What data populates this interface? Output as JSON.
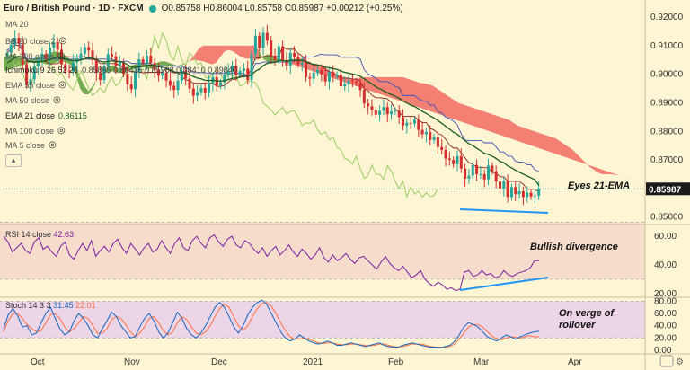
{
  "header": {
    "symbol": "Euro / British Pound · 1D · FXCM",
    "ohlc": "O0.85758 H0.86004 L0.85758 C0.85987 +0.00212 (+0.25%)"
  },
  "indicators": [
    {
      "label": "MA 20",
      "value": ""
    },
    {
      "label": "BB 20 close 2",
      "value": ""
    },
    {
      "label": "MA 200 close",
      "value": ""
    },
    {
      "label": "Ichimoku 9 26 52 26",
      "value": "0.85865  0.86415  0.85988  0.88410  0.89840"
    },
    {
      "label": "EMA 55 close",
      "value": ""
    },
    {
      "label": "MA 50 close",
      "value": ""
    },
    {
      "label": "EMA 21 close",
      "value": "0.86115"
    },
    {
      "label": "MA 100 close",
      "value": ""
    },
    {
      "label": "MA 5 close",
      "value": ""
    }
  ],
  "rsi": {
    "label": "RSI 14 close",
    "value": "42.63"
  },
  "stoch": {
    "label": "Stoch 14 3 3",
    "k": "31.45",
    "d": "22.01"
  },
  "annotations": {
    "eyes": "Eyes 21-EMA",
    "bullish": "Bullish divergence",
    "verge1": "On verge of",
    "verge2": "rollover"
  },
  "colors": {
    "background": "#fdf5d3",
    "up": "#26a69a",
    "down": "#d32f2f",
    "cloud_bear": "#f26b63",
    "cloud_bull": "#5f9e3a",
    "ema21": "#1b5e20",
    "kijun": "#8e2020",
    "tenkan": "#3f51b5",
    "chikou": "#9ccc65",
    "rsi": "#7b1fa2",
    "stoch_k": "#1565c0",
    "stoch_d": "#ff7043",
    "divergence": "#2196f3"
  },
  "chart_data": [
    {
      "type": "candlestick",
      "title": "Euro / British Pound",
      "x_labels": [
        "Oct",
        "Nov",
        "Dec",
        "2021",
        "Feb",
        "Mar",
        "Apr"
      ],
      "y_ticks": [
        0.85,
        0.86,
        0.87,
        0.88,
        0.89,
        0.9,
        0.91,
        0.92
      ],
      "ylim": [
        0.848,
        0.9235
      ],
      "last_price": "0.85987",
      "close": [
        0.9075,
        0.9103,
        0.9128,
        0.9108,
        0.9035,
        0.8962,
        0.8982,
        0.9028,
        0.9051,
        0.9072,
        0.9055,
        0.9093,
        0.9112,
        0.9086,
        0.9035,
        0.9013,
        0.901,
        0.9042,
        0.9055,
        0.9072,
        0.9095,
        0.9083,
        0.905,
        0.9005,
        0.898,
        0.9028,
        0.907,
        0.9062,
        0.903,
        0.9042,
        0.9002,
        0.8965,
        0.8948,
        0.9008,
        0.9052,
        0.904,
        0.9065,
        0.904,
        0.9015,
        0.8995,
        0.9005,
        0.8978,
        0.896,
        0.8945,
        0.8978,
        0.9012,
        0.8985,
        0.895,
        0.8925,
        0.8938,
        0.8952,
        0.8935,
        0.8968,
        0.899,
        0.896,
        0.8972,
        0.8998,
        0.901,
        0.903,
        0.8998,
        0.9012,
        0.902,
        0.898,
        0.907,
        0.9135,
        0.9092,
        0.9145,
        0.9118,
        0.9065,
        0.905,
        0.9098,
        0.905,
        0.903,
        0.9075,
        0.906,
        0.9035,
        0.904,
        0.899,
        0.8985,
        0.9005,
        0.9015,
        0.9,
        0.8975,
        0.9008,
        0.8993,
        0.8998,
        0.8958,
        0.8965,
        0.8978,
        0.8975,
        0.897,
        0.8945,
        0.8898,
        0.8888,
        0.8875,
        0.8858,
        0.8872,
        0.8885,
        0.886,
        0.887,
        0.8872,
        0.885,
        0.882,
        0.883,
        0.8828,
        0.884,
        0.8805,
        0.879,
        0.8798,
        0.877,
        0.878,
        0.8745,
        0.8735,
        0.8705,
        0.87,
        0.8685,
        0.8713,
        0.867,
        0.8635,
        0.8645,
        0.8682,
        0.865,
        0.865,
        0.8632,
        0.868,
        0.866,
        0.8625,
        0.86,
        0.8625,
        0.857,
        0.8605,
        0.858,
        0.859,
        0.857,
        0.8585,
        0.8572,
        0.8575,
        0.8598
      ],
      "ema21": [
        0.904,
        0.9048,
        0.9058,
        0.9063,
        0.906,
        0.9051,
        0.9044,
        0.9042,
        0.9043,
        0.9046,
        0.9047,
        0.9051,
        0.9057,
        0.906,
        0.9057,
        0.9053,
        0.9049,
        0.9048,
        0.9048,
        0.905,
        0.9054,
        0.9057,
        0.9056,
        0.9052,
        0.9045,
        0.9043,
        0.9045,
        0.9047,
        0.9045,
        0.9045,
        0.9041,
        0.9034,
        0.9026,
        0.9024,
        0.9027,
        0.9028,
        0.9031,
        0.9032,
        0.903,
        0.9027,
        0.9025,
        0.9021,
        0.9015,
        0.9009,
        0.9006,
        0.9006,
        0.9004,
        0.8999,
        0.8992,
        0.8987,
        0.8984,
        0.8979,
        0.8978,
        0.8979,
        0.8977,
        0.8976,
        0.8978,
        0.8981,
        0.8986,
        0.8987,
        0.899,
        0.8993,
        0.8992,
        0.8998,
        0.9011,
        0.9018,
        0.903,
        0.9038,
        0.9041,
        0.9042,
        0.9048,
        0.9048,
        0.9046,
        0.9049,
        0.905,
        0.9049,
        0.9048,
        0.9043,
        0.9038,
        0.9035,
        0.9033,
        0.903,
        0.9025,
        0.9023,
        0.902,
        0.9017,
        0.9011,
        0.9007,
        0.9004,
        0.9001,
        0.8998,
        0.8993,
        0.8984,
        0.8975,
        0.8966,
        0.8956,
        0.8949,
        0.8943,
        0.8935,
        0.8929,
        0.8923,
        0.8916,
        0.8907,
        0.8899,
        0.8892,
        0.8887,
        0.8879,
        0.887,
        0.8863,
        0.8854,
        0.8847,
        0.8838,
        0.8828,
        0.8818,
        0.8808,
        0.8797,
        0.879,
        0.8779,
        0.8767,
        0.8757,
        0.875,
        0.8741,
        0.8732,
        0.8723,
        0.8719,
        0.8713,
        0.8705,
        0.8695,
        0.869,
        0.8679,
        0.8672,
        0.8664,
        0.8657,
        0.865,
        0.8644,
        0.8637,
        0.8631,
        0.8611
      ],
      "cloud_a": [
        0.906,
        0.9065,
        0.907,
        0.9065,
        0.9055,
        0.9048,
        0.905,
        0.9055,
        0.906,
        0.9065,
        0.907,
        0.9075,
        0.908,
        0.9078,
        0.907,
        0.906,
        0.905,
        0.903,
        0.899,
        0.896,
        0.894,
        0.896,
        0.898,
        0.9,
        0.902,
        0.903,
        0.903,
        0.902,
        0.902,
        0.9025,
        0.903,
        0.9035,
        0.904,
        0.904,
        0.9035,
        0.9035,
        0.904,
        0.9045,
        0.9045,
        0.904,
        0.9035,
        0.903,
        0.9035,
        0.904,
        0.9048,
        0.905,
        0.9048,
        0.9045,
        0.904,
        0.9035,
        0.904,
        0.906,
        0.908,
        0.9085,
        0.908,
        0.907,
        0.906,
        0.9055,
        0.9055,
        0.905,
        0.9052,
        0.906,
        0.907,
        0.9068,
        0.906,
        0.905,
        0.9045,
        0.9048,
        0.905,
        0.9055,
        0.9055,
        0.905,
        0.9042,
        0.9035,
        0.903,
        0.9025,
        0.902,
        0.901,
        0.9,
        0.8995,
        0.899,
        0.8985,
        0.8985,
        0.8985,
        0.8985,
        0.899,
        0.899,
        0.899,
        0.899,
        0.899,
        0.899,
        0.899,
        0.899,
        0.899,
        0.899,
        0.8985,
        0.898,
        0.8975,
        0.897,
        0.8968,
        0.8965,
        0.896,
        0.895,
        0.894,
        0.893,
        0.892,
        0.891,
        0.89,
        0.8895,
        0.889,
        0.8885,
        0.888,
        0.8875,
        0.887,
        0.8865,
        0.886,
        0.8855,
        0.885,
        0.8845,
        0.884,
        0.883,
        0.882,
        0.8815,
        0.881,
        0.8805,
        0.88,
        0.8795,
        0.879,
        0.8785,
        0.878,
        0.8775,
        0.8765,
        0.8755,
        0.8745,
        0.8735,
        0.872,
        0.8705,
        0.869,
        0.8675,
        0.8665,
        0.8655,
        0.865,
        0.865,
        0.865,
        0.8648,
        0.8645,
        0.864,
        0.8635,
        0.863,
        0.8625,
        0.862,
        0.8615
      ],
      "cloud_b": [
        0.901,
        0.9015,
        0.902,
        0.9025,
        0.903,
        0.9035,
        0.904,
        0.9045,
        0.9045,
        0.904,
        0.9035,
        0.9035,
        0.904,
        0.9045,
        0.9045,
        0.904,
        0.903,
        0.9,
        0.895,
        0.893,
        0.893,
        0.895,
        0.898,
        0.8995,
        0.9005,
        0.901,
        0.901,
        0.9005,
        0.9005,
        0.901,
        0.9015,
        0.902,
        0.9025,
        0.9025,
        0.902,
        0.902,
        0.9025,
        0.903,
        0.903,
        0.903,
        0.903,
        0.903,
        0.903,
        0.904,
        0.905,
        0.907,
        0.909,
        0.91,
        0.91,
        0.91,
        0.91,
        0.91,
        0.91,
        0.91,
        0.91,
        0.91,
        0.91,
        0.91,
        0.91,
        0.91,
        0.9085,
        0.9055,
        0.9045,
        0.904,
        0.9045,
        0.905,
        0.906,
        0.9075,
        0.9085,
        0.909,
        0.909,
        0.909,
        0.909,
        0.909,
        0.909,
        0.909,
        0.909,
        0.909,
        0.909,
        0.909,
        0.909,
        0.909,
        0.909,
        0.909,
        0.909,
        0.909,
        0.909,
        0.909,
        0.909,
        0.909,
        0.909,
        0.909,
        0.909,
        0.909,
        0.909,
        0.909,
        0.909,
        0.909,
        0.909,
        0.909,
        0.909,
        0.909,
        0.909,
        0.909,
        0.909,
        0.909,
        0.909,
        0.909,
        0.909,
        0.909,
        0.909,
        0.909,
        0.909,
        0.909,
        0.909,
        0.909,
        0.909,
        0.909,
        0.909,
        0.909,
        0.9085,
        0.9075,
        0.9065,
        0.906,
        0.9055,
        0.9055,
        0.905,
        0.905,
        0.905,
        0.9045,
        0.904,
        0.9035,
        0.903,
        0.902,
        0.901,
        0.9,
        0.899,
        0.898,
        0.897,
        0.896,
        0.895,
        0.894,
        0.893,
        0.892,
        0.891,
        0.89,
        0.889,
        0.8885,
        0.888,
        0.8875,
        0.887
      ]
    },
    {
      "type": "line",
      "title": "RSI 14 close",
      "y_ticks": [
        20.0,
        40.0,
        60.0
      ],
      "ylim": [
        18,
        67
      ],
      "values": [
        60,
        56,
        49,
        52,
        55,
        50,
        48,
        56,
        59,
        51,
        53,
        49,
        46,
        53,
        56,
        47,
        44,
        50,
        55,
        50,
        57,
        46,
        50,
        53,
        49,
        55,
        58,
        52,
        48,
        55,
        51,
        47,
        52,
        55,
        49,
        51,
        57,
        52,
        48,
        55,
        59,
        52,
        50,
        57,
        60,
        55,
        52,
        59,
        61,
        56,
        53,
        58,
        60,
        54,
        52,
        57,
        55,
        51,
        48,
        52,
        46,
        50,
        53,
        47,
        50,
        54,
        49,
        46,
        51,
        48,
        44,
        47,
        52,
        45,
        42,
        47,
        43,
        45,
        48,
        44,
        41,
        45,
        46,
        43,
        40,
        37,
        42,
        46,
        41,
        38,
        36,
        39,
        35,
        31,
        33,
        36,
        30,
        27,
        25,
        28,
        26,
        23,
        24,
        22,
        23,
        35,
        36,
        32,
        33,
        36,
        33,
        34,
        31,
        32,
        36,
        33,
        32,
        34,
        35,
        36,
        38,
        43,
        43
      ]
    },
    {
      "type": "line",
      "title": "Stoch 14 3 3",
      "y_ticks": [
        0.0,
        20.0,
        40.0,
        60.0,
        80.0
      ],
      "ylim": [
        -3,
        85
      ],
      "k": [
        35,
        58,
        68,
        56,
        38,
        40,
        25,
        28,
        45,
        60,
        70,
        52,
        35,
        25,
        30,
        48,
        60,
        52,
        40,
        25,
        20,
        35,
        48,
        62,
        55,
        40,
        30,
        20,
        22,
        38,
        52,
        60,
        48,
        30,
        20,
        28,
        45,
        62,
        52,
        35,
        25,
        20,
        28,
        40,
        55,
        70,
        78,
        70,
        55,
        38,
        28,
        40,
        58,
        70,
        78,
        82,
        75,
        60,
        45,
        30,
        20,
        15,
        18,
        25,
        20,
        15,
        12,
        10,
        12,
        15,
        12,
        8,
        8,
        10,
        12,
        10,
        8,
        6,
        8,
        10,
        12,
        8,
        6,
        5,
        5,
        8,
        10,
        12,
        10,
        8,
        6,
        5,
        5,
        4,
        6,
        8,
        14,
        25,
        38,
        45,
        42,
        38,
        30,
        22,
        18,
        15,
        20,
        25,
        22,
        18,
        22,
        25,
        28,
        30,
        31
      ],
      "d": [
        30,
        48,
        60,
        60,
        52,
        42,
        35,
        30,
        32,
        45,
        58,
        60,
        52,
        38,
        30,
        35,
        45,
        55,
        52,
        40,
        28,
        28,
        35,
        50,
        55,
        52,
        42,
        30,
        22,
        28,
        38,
        52,
        55,
        45,
        32,
        25,
        30,
        45,
        55,
        50,
        38,
        28,
        25,
        30,
        40,
        55,
        68,
        75,
        70,
        55,
        40,
        32,
        40,
        55,
        68,
        76,
        78,
        72,
        60,
        45,
        32,
        22,
        18,
        18,
        20,
        18,
        15,
        12,
        11,
        12,
        12,
        10,
        9,
        9,
        10,
        10,
        9,
        8,
        7,
        8,
        10,
        10,
        8,
        6,
        5,
        6,
        8,
        10,
        10,
        10,
        8,
        6,
        5,
        5,
        5,
        6,
        10,
        18,
        28,
        38,
        42,
        42,
        38,
        30,
        23,
        18,
        17,
        20,
        22,
        21,
        20,
        22,
        24,
        22,
        22
      ]
    }
  ]
}
